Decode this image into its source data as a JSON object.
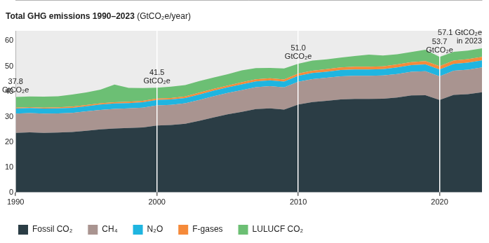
{
  "chart_data": {
    "type": "stacked_area",
    "title": "Total GHG emissions 1990–2023",
    "subtitle": "(GtCO₂e/year)",
    "x": [
      1990,
      1991,
      1992,
      1993,
      1994,
      1995,
      1996,
      1997,
      1998,
      1999,
      2000,
      2001,
      2002,
      2003,
      2004,
      2005,
      2006,
      2007,
      2008,
      2009,
      2010,
      2011,
      2012,
      2013,
      2014,
      2015,
      2016,
      2017,
      2018,
      2019,
      2020,
      2021,
      2022,
      2023
    ],
    "xlim": [
      1990,
      2023
    ],
    "xticks": [
      1990,
      2000,
      2010,
      2020
    ],
    "ylim": [
      0,
      64
    ],
    "yticks": [
      0,
      10,
      20,
      30,
      40,
      50,
      60
    ],
    "stacked": true,
    "grid": "x",
    "legend": "bottom",
    "series": [
      {
        "name": "Fossil CO₂",
        "color": "#2b3d45",
        "values": [
          23.6,
          23.8,
          23.6,
          23.7,
          23.9,
          24.4,
          25.0,
          25.3,
          25.5,
          25.7,
          26.5,
          26.7,
          27.2,
          28.4,
          29.7,
          30.9,
          31.9,
          33.0,
          33.3,
          32.8,
          34.8,
          35.8,
          36.3,
          36.8,
          37.0,
          37.0,
          37.1,
          37.6,
          38.4,
          38.5,
          36.6,
          38.6,
          38.9,
          39.7
        ]
      },
      {
        "name": "CH₄",
        "color": "#a99490",
        "values": [
          7.6,
          7.6,
          7.6,
          7.6,
          7.6,
          7.7,
          7.7,
          7.8,
          7.8,
          7.9,
          8.0,
          8.0,
          8.1,
          8.2,
          8.4,
          8.5,
          8.6,
          8.7,
          8.8,
          8.8,
          9.0,
          9.1,
          9.1,
          9.2,
          9.2,
          9.2,
          9.2,
          9.3,
          9.4,
          9.5,
          9.4,
          9.6,
          9.7,
          9.8
        ]
      },
      {
        "name": "N₂O",
        "color": "#1fb5e0",
        "values": [
          2.0,
          2.0,
          2.0,
          2.0,
          2.0,
          2.0,
          2.1,
          2.1,
          2.1,
          2.1,
          2.1,
          2.1,
          2.1,
          2.2,
          2.2,
          2.2,
          2.3,
          2.3,
          2.3,
          2.3,
          2.4,
          2.4,
          2.4,
          2.5,
          2.5,
          2.5,
          2.5,
          2.6,
          2.6,
          2.7,
          2.7,
          2.7,
          2.8,
          2.8
        ]
      },
      {
        "name": "F-gases",
        "color": "#f58a3a",
        "values": [
          0.4,
          0.4,
          0.4,
          0.4,
          0.5,
          0.5,
          0.5,
          0.5,
          0.5,
          0.6,
          0.6,
          0.6,
          0.6,
          0.7,
          0.7,
          0.7,
          0.8,
          0.8,
          0.8,
          0.8,
          0.9,
          0.9,
          1.0,
          1.0,
          1.1,
          1.1,
          1.1,
          1.2,
          1.2,
          1.3,
          1.3,
          1.3,
          1.4,
          1.4
        ]
      },
      {
        "name": "LULUCF CO₂",
        "color": "#6cbf74",
        "values": [
          4.2,
          4.2,
          4.3,
          4.4,
          4.8,
          5.0,
          5.4,
          7.0,
          5.5,
          5.0,
          4.3,
          4.5,
          4.5,
          4.6,
          4.5,
          4.5,
          4.7,
          4.4,
          4.1,
          4.4,
          3.9,
          4.0,
          3.9,
          3.9,
          4.2,
          4.8,
          4.3,
          4.0,
          4.0,
          4.5,
          3.7,
          3.5,
          3.4,
          3.4
        ]
      }
    ],
    "annotations": [
      {
        "x": 1990,
        "y": 37.8,
        "text": [
          "37.8",
          "GtCO₂e"
        ]
      },
      {
        "x": 2000,
        "y": 41.5,
        "text": [
          "41.5",
          "GtCO₂e"
        ]
      },
      {
        "x": 2010,
        "y": 51.0,
        "text": [
          "51.0",
          "GtCO₂e"
        ]
      },
      {
        "x": 2020,
        "y": 53.7,
        "text": [
          "53.7",
          "GtCO₂e"
        ]
      },
      {
        "x": 2023,
        "y": 57.1,
        "text": [
          "57.1 GtCO₂e",
          "in 2023"
        ]
      }
    ]
  }
}
